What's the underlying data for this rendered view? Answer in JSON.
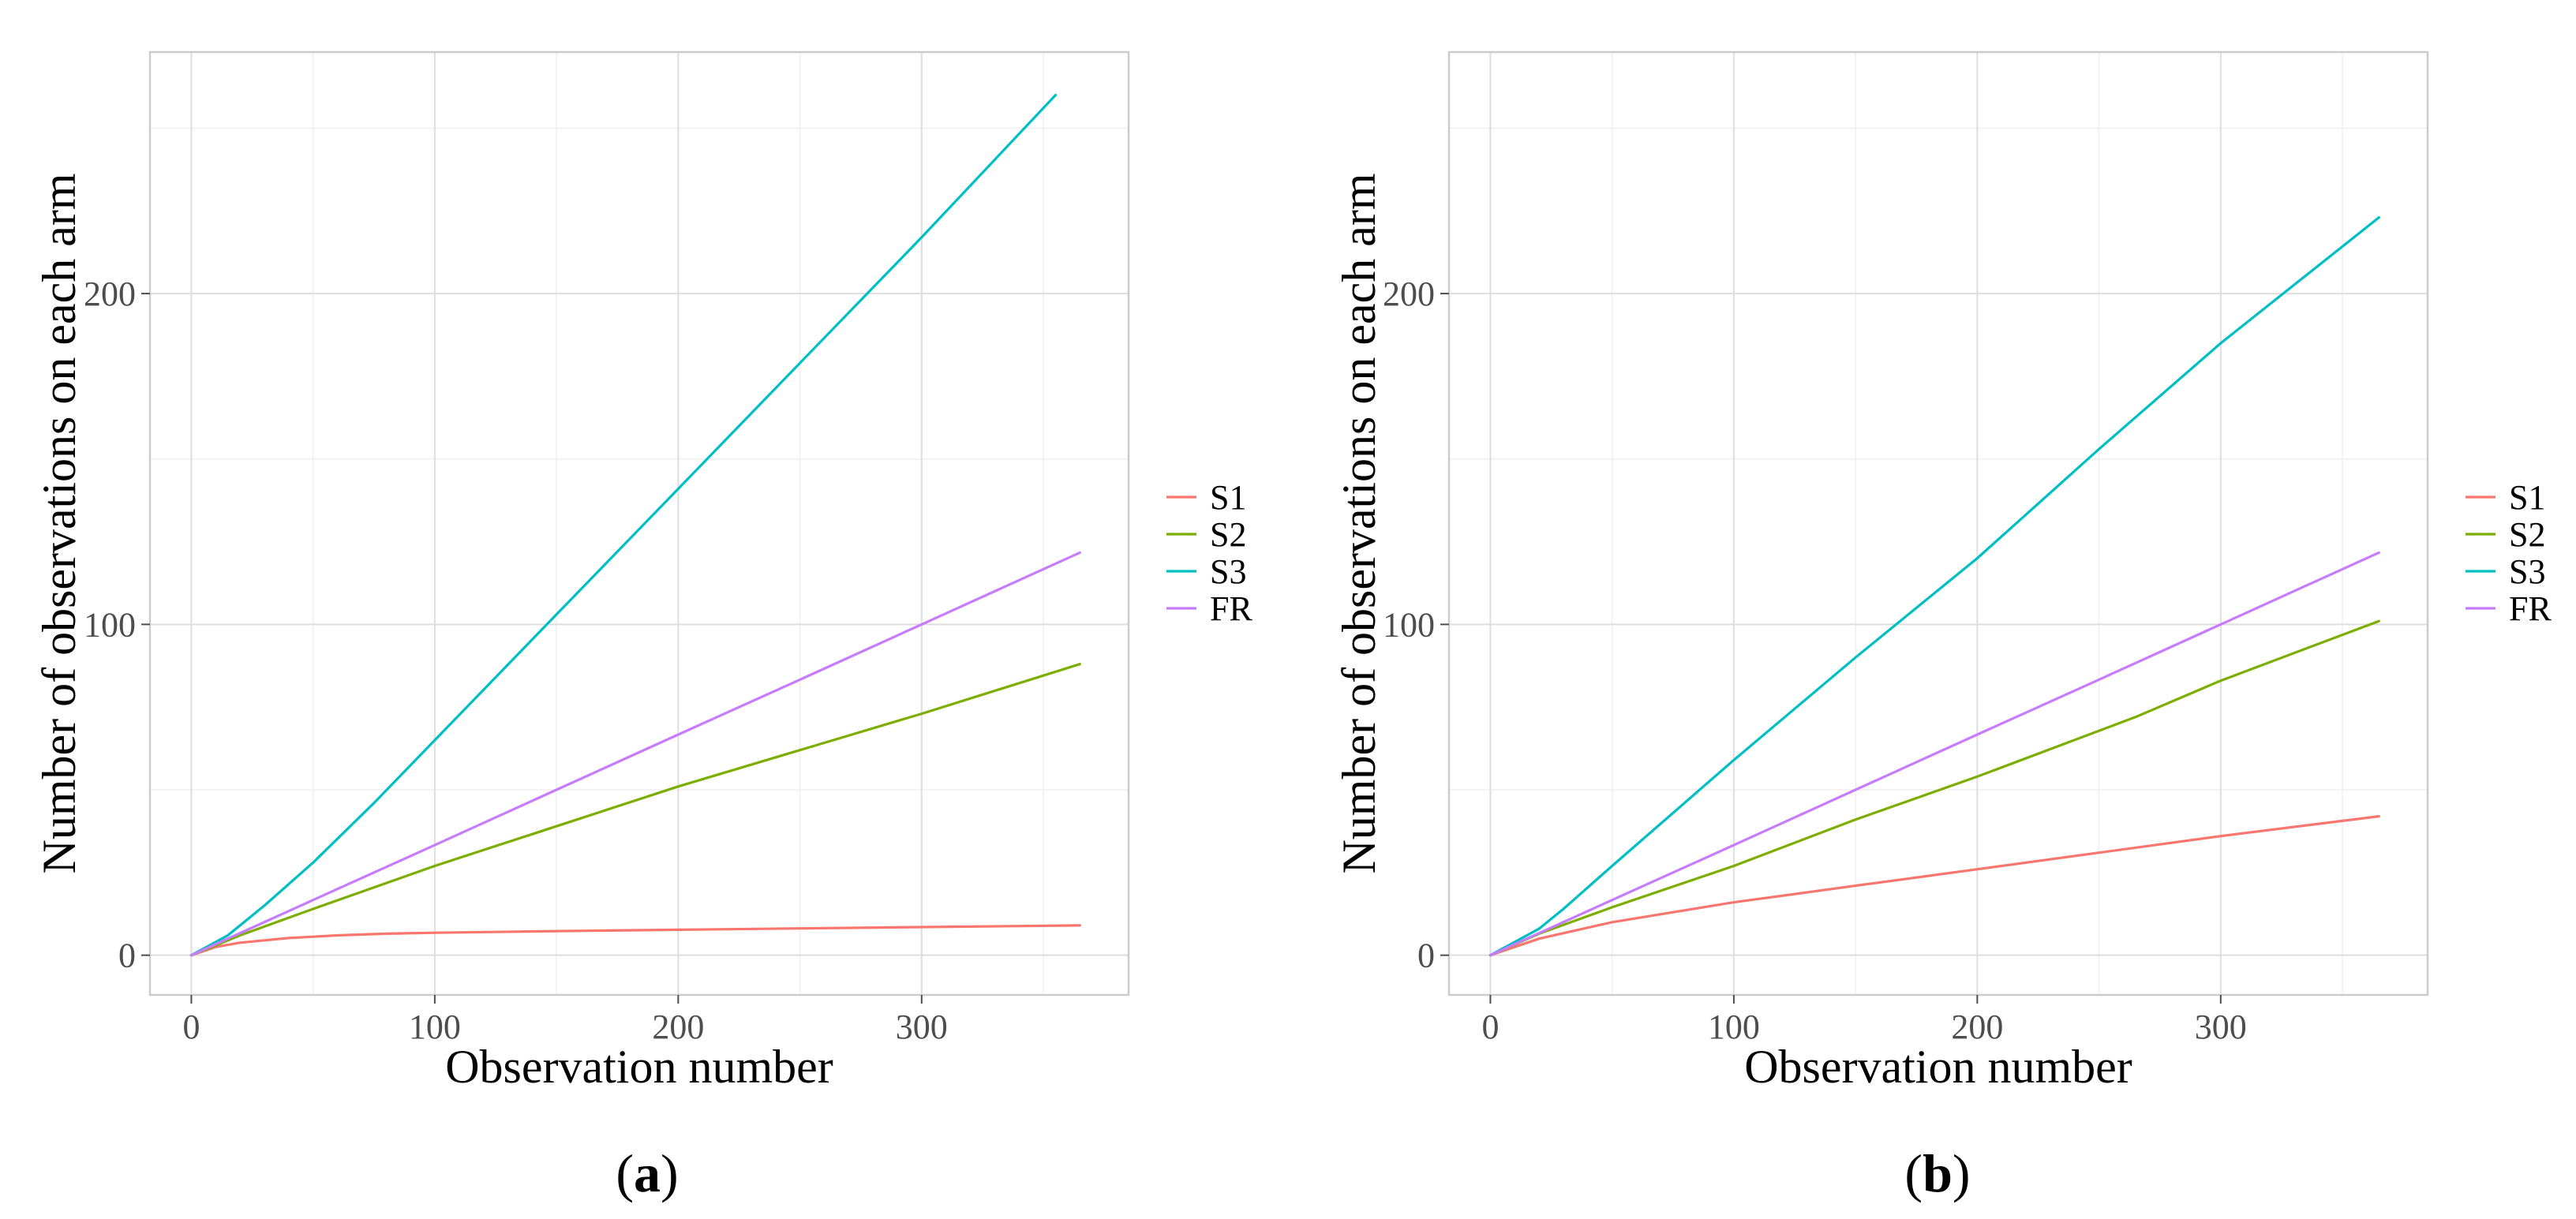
{
  "chart_data": [
    {
      "type": "line",
      "panel_label": "a",
      "xlabel": "Observation number",
      "ylabel": "Number of observations on each arm",
      "xlim": [
        -17,
        385
      ],
      "ylim": [
        -12,
        273
      ],
      "x_ticks": [
        0,
        100,
        200,
        300
      ],
      "y_ticks": [
        0,
        100,
        200
      ],
      "grid": true,
      "legend_position": "right",
      "series": [
        {
          "name": "S1",
          "color": "#F8766D",
          "points": [
            [
              0,
              0
            ],
            [
              10,
              2.5
            ],
            [
              20,
              3.8
            ],
            [
              40,
              5.2
            ],
            [
              60,
              6.0
            ],
            [
              80,
              6.5
            ],
            [
              100,
              6.8
            ],
            [
              150,
              7.3
            ],
            [
              200,
              7.7
            ],
            [
              250,
              8.1
            ],
            [
              300,
              8.5
            ],
            [
              365,
              9
            ]
          ]
        },
        {
          "name": "S2",
          "color": "#7CAE00",
          "points": [
            [
              0,
              0
            ],
            [
              20,
              6
            ],
            [
              50,
              14
            ],
            [
              100,
              27
            ],
            [
              150,
              39
            ],
            [
              200,
              51
            ],
            [
              250,
              62
            ],
            [
              300,
              73
            ],
            [
              365,
              88
            ]
          ]
        },
        {
          "name": "S3",
          "color": "#00BFC4",
          "points": [
            [
              0,
              0
            ],
            [
              15,
              6
            ],
            [
              30,
              15
            ],
            [
              50,
              28
            ],
            [
              75,
              46
            ],
            [
              100,
              65
            ],
            [
              150,
              103
            ],
            [
              200,
              141
            ],
            [
              250,
              179
            ],
            [
              300,
              217
            ],
            [
              355,
              260
            ]
          ]
        },
        {
          "name": "FR",
          "color": "#C77CFF",
          "points": [
            [
              0,
              0
            ],
            [
              50,
              16.7
            ],
            [
              100,
              33.3
            ],
            [
              150,
              50
            ],
            [
              200,
              66.7
            ],
            [
              250,
              83.3
            ],
            [
              300,
              100
            ],
            [
              365,
              121.7
            ]
          ]
        }
      ]
    },
    {
      "type": "line",
      "panel_label": "b",
      "xlabel": "Observation number",
      "ylabel": "Number of observations on each arm",
      "xlim": [
        -17,
        385
      ],
      "ylim": [
        -12,
        273
      ],
      "x_ticks": [
        0,
        100,
        200,
        300
      ],
      "y_ticks": [
        0,
        100,
        200
      ],
      "grid": true,
      "legend_position": "right",
      "series": [
        {
          "name": "S1",
          "color": "#F8766D",
          "points": [
            [
              0,
              0
            ],
            [
              20,
              5
            ],
            [
              50,
              10
            ],
            [
              100,
              16
            ],
            [
              150,
              21
            ],
            [
              200,
              26
            ],
            [
              250,
              31
            ],
            [
              300,
              36
            ],
            [
              365,
              42
            ]
          ]
        },
        {
          "name": "S2",
          "color": "#7CAE00",
          "points": [
            [
              0,
              0
            ],
            [
              20,
              6.5
            ],
            [
              50,
              14.5
            ],
            [
              100,
              27
            ],
            [
              150,
              41
            ],
            [
              200,
              54
            ],
            [
              265,
              72
            ],
            [
              300,
              83
            ],
            [
              365,
              101
            ]
          ]
        },
        {
          "name": "S3",
          "color": "#00BFC4",
          "points": [
            [
              0,
              0
            ],
            [
              20,
              8
            ],
            [
              30,
              14
            ],
            [
              50,
              27
            ],
            [
              100,
              59
            ],
            [
              150,
              90
            ],
            [
              200,
              120
            ],
            [
              250,
              153
            ],
            [
              300,
              185
            ],
            [
              365,
              223
            ]
          ]
        },
        {
          "name": "FR",
          "color": "#C77CFF",
          "points": [
            [
              0,
              0
            ],
            [
              50,
              16.7
            ],
            [
              100,
              33.3
            ],
            [
              150,
              50
            ],
            [
              200,
              66.7
            ],
            [
              250,
              83.3
            ],
            [
              300,
              100
            ],
            [
              365,
              121.7
            ]
          ]
        }
      ]
    }
  ]
}
